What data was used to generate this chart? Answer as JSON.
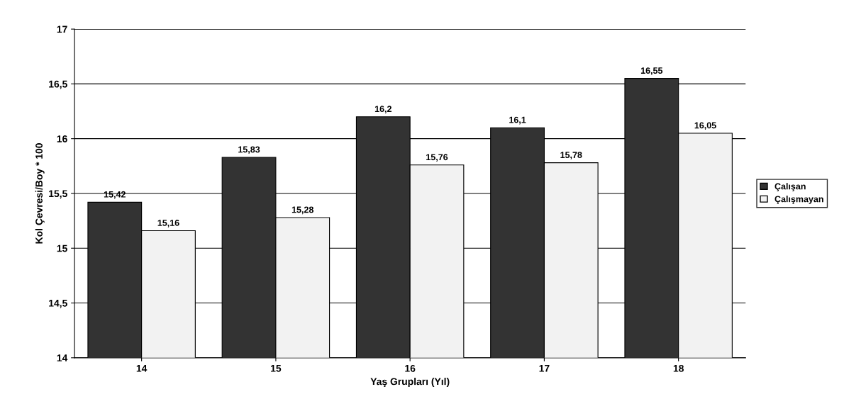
{
  "chart_data": {
    "type": "bar",
    "xlabel": "Yaş Grupları (Yıl)",
    "ylabel": "Kol Çevresi/Boy * 100",
    "categories": [
      "14",
      "15",
      "16",
      "17",
      "18"
    ],
    "series": [
      {
        "name": "Çalışan",
        "color": "#333333",
        "values": [
          15.42,
          15.83,
          16.2,
          16.1,
          16.55
        ],
        "value_labels": [
          "15,42",
          "15,83",
          "16,2",
          "16,1",
          "16,55"
        ]
      },
      {
        "name": "Çalışmayan",
        "color": "#f2f2f2",
        "values": [
          15.16,
          15.28,
          15.76,
          15.78,
          16.05
        ],
        "value_labels": [
          "15,16",
          "15,28",
          "15,76",
          "15,78",
          "16,05"
        ]
      }
    ],
    "ylim": [
      14,
      17
    ],
    "yticks": [
      14,
      {
        "value": 14.5,
        "label": "14,5"
      },
      15,
      {
        "value": 15.5,
        "label": "15,5"
      },
      16,
      {
        "value": 16.5,
        "label": "16,5"
      },
      17
    ],
    "grid": "y",
    "legend": "right"
  }
}
